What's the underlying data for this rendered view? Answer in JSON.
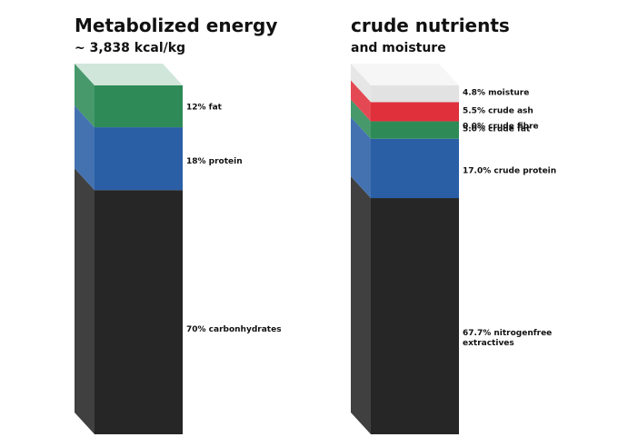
{
  "chart_data": [
    {
      "type": "stacked-column-3d",
      "title": "Metabolized energy",
      "subtitle": "~ 3,838 kcal/kg",
      "unit": "%",
      "segments": [
        {
          "name": "carbonhydrates",
          "value": 70,
          "label": "70% carbonhydrates",
          "color": "#262626"
        },
        {
          "name": "protein",
          "value": 18,
          "label": "18% protein",
          "color": "#2a5fa6"
        },
        {
          "name": "fat",
          "value": 12,
          "label": "12% fat",
          "color": "#2e8b57"
        }
      ]
    },
    {
      "type": "stacked-column-3d",
      "title": "crude nutrients",
      "subtitle": "and moisture",
      "unit": "%",
      "segments": [
        {
          "name": "nitrogenfree extractives",
          "value": 67.7,
          "label": "67.7% nitrogenfree extractives",
          "color": "#262626"
        },
        {
          "name": "crude protein",
          "value": 17.0,
          "label": "17.0% crude protein",
          "color": "#2a5fa6"
        },
        {
          "name": "crude fat",
          "value": 5.0,
          "label": "5.0% crude fat",
          "color": "#2e8b57"
        },
        {
          "name": "crude fibre",
          "value": 0.0,
          "label": "0.0% crude fibre",
          "color": "#9aa05a"
        },
        {
          "name": "crude ash",
          "value": 5.5,
          "label": "5.5% crude ash",
          "color": "#e0303c"
        },
        {
          "name": "moisture",
          "value": 4.8,
          "label": "4.8% moisture",
          "color": "#d6d6d6"
        }
      ]
    }
  ]
}
